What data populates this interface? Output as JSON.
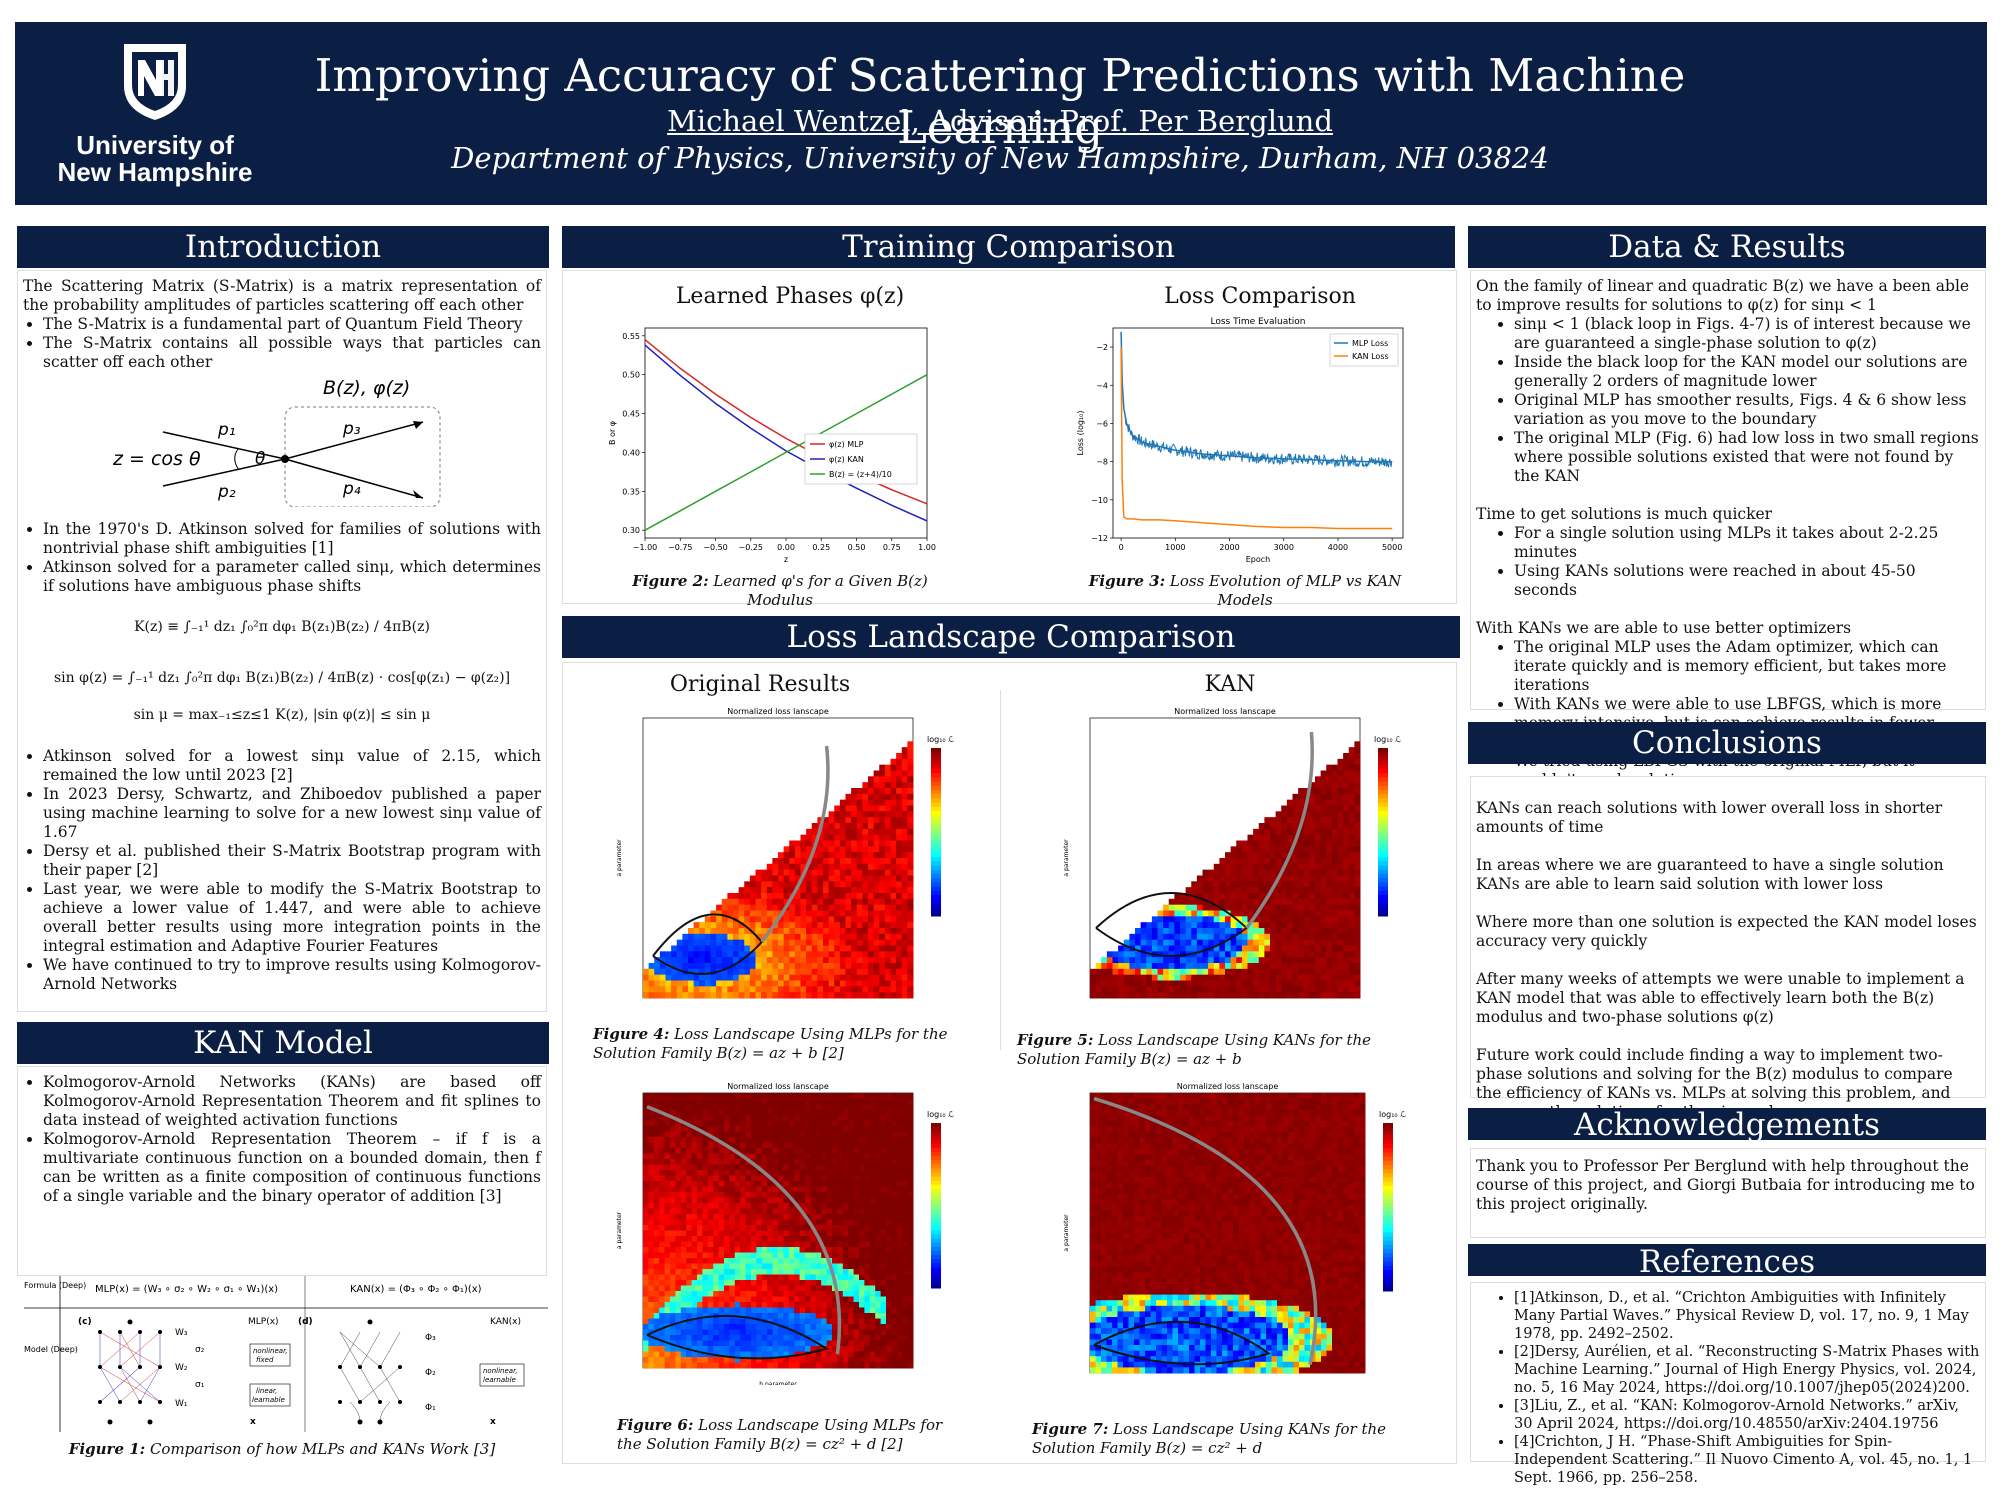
{
  "header": {
    "university": "University of New Hampshire",
    "uni_line1": "University of",
    "uni_line2": "New Hampshire",
    "title": "Improving Accuracy of Scattering Predictions with Machine Learning",
    "authors": "Michael Wentzel, Advisor: Prof. Per Berglund",
    "department": "Department of Physics, University of New Hampshire, Durham, NH 03824"
  },
  "intro": {
    "heading": "Introduction",
    "p1": "The Scattering Matrix (S-Matrix) is a matrix representation of the probability amplitudes of particles scattering off each other",
    "bullets1": [
      "The S-Matrix is a fundamental part of Quantum Field Theory",
      "The S-Matrix contains all possible ways that particles can scatter off each other"
    ],
    "diagram": {
      "top": "B(z),  φ(z)",
      "z": "z = cos θ",
      "theta": "θ",
      "p1": "p₁",
      "p2": "p₂",
      "p3": "p₃",
      "p4": "p₄"
    },
    "bullets2": [
      "In the 1970's D. Atkinson solved for families of solutions with nontrivial phase shift ambiguities [1]",
      "Atkinson solved for a parameter called sinμ, which determines if solutions have ambiguous phase shifts"
    ],
    "eq1": "K(z) ≡ ∫₋₁¹ dz₁ ∫₀²π dφ₁ B(z₁)B(z₂) / 4πB(z)",
    "eq2": "sin φ(z) = ∫₋₁¹ dz₁ ∫₀²π dφ₁ B(z₁)B(z₂) / 4πB(z) · cos[φ(z₁) − φ(z₂)]",
    "eq3": "sin μ = max₋₁≤z≤1 K(z),  |sin φ(z)| ≤ sin μ",
    "bullets3": [
      "Atkinson solved for a lowest sinμ value of 2.15, which remained the low until 2023 [2]",
      "In 2023 Dersy, Schwartz, and Zhiboedov published a paper using machine learning to solve for a new lowest sinμ value of 1.67",
      "Dersy et al. published their S-Matrix Bootstrap program with their paper [2]",
      "Last year, we were able to modify the S-Matrix Bootstrap to achieve a lower value of 1.447, and were able to achieve overall better results using more integration points in the integral estimation and Adaptive Fourier Features",
      "We have continued to try to improve results using Kolmogorov-Arnold Networks"
    ]
  },
  "kan": {
    "heading": "KAN Model",
    "bullets": [
      "Kolmogorov-Arnold Networks (KANs) are based off Kolmogorov-Arnold Representation Theorem and fit splines to data instead of weighted activation functions",
      "Kolmogorov-Arnold Representation Theorem – if f is a multivariate continuous function on a bounded domain, then f can be written as a finite composition of continuous functions of a single variable and the binary operator of addition [3]"
    ],
    "fig": {
      "formula_label": "Formula (Deep)",
      "model_label": "Model (Deep)",
      "mlp_formula": "MLP(x) = (W₃ ∘ σ₂ ∘ W₂ ∘ σ₁ ∘ W₁)(x)",
      "kan_formula": "KAN(x) = (Φ₃ ∘ Φ₂ ∘ Φ₁)(x)",
      "c": "(c)",
      "d": "(d)",
      "mlp_out": "MLP(x)",
      "kan_out": "KAN(x)",
      "w3": "W₃",
      "w2": "W₂",
      "w1": "W₁",
      "s2": "σ₂",
      "s1": "σ₁",
      "phi3": "Φ₃",
      "phi2": "Φ₂",
      "phi1": "Φ₁",
      "nonlin_fixed_1": "nonlinear,",
      "nonlin_fixed_2": "fixed",
      "linear_1": "linear,",
      "linear_2": "learnable",
      "nonlin_learn_1": "nonlinear,",
      "nonlin_learn_2": "learnable",
      "x": "x"
    },
    "caption_label": "Figure 1:",
    "caption": " Comparison of how MLPs and KANs Work [3]"
  },
  "training": {
    "heading": "Training Comparison",
    "left_title": "Learned Phases φ(z)",
    "right_title": "Loss Comparison",
    "fig2_label": "Figure 2:",
    "fig2": " Learned φ's for a Given B(z) Modulus",
    "fig3_label": "Figure 3:",
    "fig3": " Loss Evolution of MLP vs KAN Models"
  },
  "landscape": {
    "heading": "Loss Landscape Comparison",
    "left_title": "Original Results",
    "right_title": "KAN",
    "plot_title": "Normalized loss lanscape",
    "xlab": "b parameter",
    "ylab": "a parameter",
    "cbar": "log₁₀ ℒ",
    "fig4_label": "Figure 4:",
    "fig4": " Loss Landscape Using MLPs for the Solution Family B(z) = az + b [2]",
    "fig5_label": "Figure 5:",
    "fig5": " Loss Landscape Using KANs for the Solution Family B(z) = az + b",
    "fig6_label": "Figure 6:",
    "fig6": " Loss Landscape Using MLPs for the Solution Family B(z) = cz² + d [2]",
    "fig7_label": "Figure 7:",
    "fig7": " Loss Landscape Using KANs for the Solution Family B(z) = cz² + d"
  },
  "results": {
    "heading": "Data & Results",
    "p1": "On the family of linear and quadratic B(z) we have a  been able to improve results for solutions to φ(z) for sinμ < 1",
    "bullets1": [
      "sinμ < 1 (black loop in Figs. 4-7) is of interest because we are guaranteed a single-phase solution to φ(z)",
      "Inside the black loop for the KAN model our solutions are generally 2 orders of magnitude lower",
      "Original MLP has smoother results, Figs. 4 & 6 show less variation as you move to the boundary",
      "The original MLP (Fig. 6) had low loss in two small regions where possible solutions existed that were not found by the KAN"
    ],
    "p2": "Time to get solutions is much quicker",
    "bullets2": [
      "For a single solution using MLPs it takes about 2-2.25 minutes",
      "Using KANs solutions were reached in about 45-50 seconds"
    ],
    "p3": "With KANs we are able to use better optimizers",
    "bullets3": [
      "The original MLP uses the Adam optimizer, which can iterate quickly and is memory efficient, but takes more iterations",
      "With KANs we were able to use LBFGS, which is more memory intensive, but is can achieve results in fewer iterations",
      "We tried using LBFGS with the original MLP, but it couldn't reach solutions"
    ]
  },
  "conclusions": {
    "heading": "Conclusions",
    "paras": [
      "KANs can reach solutions with lower overall loss in shorter amounts of time",
      "In areas where we are guaranteed to have a single solution KANs are able to learn said solution with lower loss",
      "Where more than one solution is expected the KAN model loses accuracy very quickly",
      "After many weeks of attempts we were unable to implement a KAN model that was able to effectively learn both the B(z) modulus and two-phase solutions φ(z)",
      "Future work could include finding a way to implement two-phase solutions and solving for the B(z) modulus to compare the efficiency of KANs vs. MLPs at solving this problem, and compare the solutions for the sinμ value"
    ]
  },
  "ack": {
    "heading": "Acknowledgements",
    "text": "Thank you to Professor Per Berglund with help throughout the course of this project, and Giorgi Butbaia for introducing me to this project originally."
  },
  "refs": {
    "heading": "References",
    "items": [
      "[1]Atkinson, D., et al. “Crichton Ambiguities with Infinitely Many Partial Waves.” Physical Review D, vol. 17, no. 9, 1 May 1978, pp. 2492–2502.",
      "[2]Dersy, Aurélien, et al. “Reconstructing S-Matrix Phases with Machine Learning.” Journal of High Energy Physics, vol. 2024, no. 5, 16 May 2024, https://doi.org/10.1007/jhep05(2024)200.",
      "[3]Liu, Z., et al. “KAN: Kolmogorov-Arnold Networks.” arXiv, 30 April 2024, https://doi.org/10.48550/arXiv:2404.19756",
      "[4]Crichton, J H. “Phase-Shift Ambiguities for Spin-Independent Scattering.” Il Nuovo Cimento A, vol. 45, no. 1, 1 Sept. 1966, pp. 256–258."
    ]
  },
  "chart_data": [
    {
      "type": "line",
      "title": "",
      "xlabel": "z",
      "ylabel": "B or φ",
      "xlim": [
        -1.0,
        1.0
      ],
      "ylim": [
        0.29,
        0.56
      ],
      "xticks": [
        "−1.00",
        "−0.75",
        "−0.50",
        "−0.25",
        "0.00",
        "0.25",
        "0.50",
        "0.75",
        "1.00"
      ],
      "yticks": [
        "0.30",
        "0.35",
        "0.40",
        "0.45",
        "0.50",
        "0.55"
      ],
      "x": [
        -1.0,
        -0.75,
        -0.5,
        -0.25,
        0.0,
        0.25,
        0.5,
        0.75,
        1.0
      ],
      "series": [
        {
          "name": "φ(z) MLP",
          "color": "#d62728",
          "values": [
            0.545,
            0.508,
            0.475,
            0.445,
            0.418,
            0.394,
            0.372,
            0.352,
            0.334
          ]
        },
        {
          "name": "φ(z) KAN",
          "color": "#1f1fbf",
          "values": [
            0.538,
            0.499,
            0.463,
            0.431,
            0.402,
            0.377,
            0.354,
            0.332,
            0.312
          ]
        },
        {
          "name": "B(z) = (z+4)/10",
          "color": "#2ca02c",
          "values": [
            0.3,
            0.325,
            0.35,
            0.375,
            0.4,
            0.425,
            0.45,
            0.475,
            0.5
          ]
        }
      ],
      "legend": "center-right",
      "grid": false
    },
    {
      "type": "line",
      "title": "Loss Time Evaluation",
      "xlabel": "Epoch",
      "ylabel": "Loss (log₁₀)",
      "xlim": [
        -150,
        5200
      ],
      "ylim": [
        -12,
        -1
      ],
      "xticks": [
        "0",
        "1000",
        "2000",
        "3000",
        "4000",
        "5000"
      ],
      "yticks": [
        "−12",
        "−10",
        "−8",
        "−6",
        "−4",
        "−2"
      ],
      "x": [
        0,
        20,
        50,
        100,
        200,
        400,
        700,
        1000,
        1500,
        2000,
        2500,
        3000,
        3500,
        4000,
        4500,
        5000
      ],
      "series": [
        {
          "name": "MLP Loss",
          "color": "#1f77b4",
          "values": [
            -1.2,
            -3.8,
            -5.2,
            -6.0,
            -6.6,
            -7.0,
            -7.2,
            -7.4,
            -7.6,
            -7.7,
            -7.8,
            -7.85,
            -7.9,
            -7.95,
            -8.0,
            -8.0
          ]
        },
        {
          "name": "KAN Loss",
          "color": "#ff7f0e",
          "values": [
            -2.0,
            -9.0,
            -10.9,
            -11.0,
            -11.0,
            -11.05,
            -11.05,
            -11.1,
            -11.2,
            -11.3,
            -11.4,
            -11.45,
            -11.45,
            -11.5,
            -11.5,
            -11.5
          ]
        }
      ],
      "legend": "top-right",
      "grid": false
    }
  ]
}
